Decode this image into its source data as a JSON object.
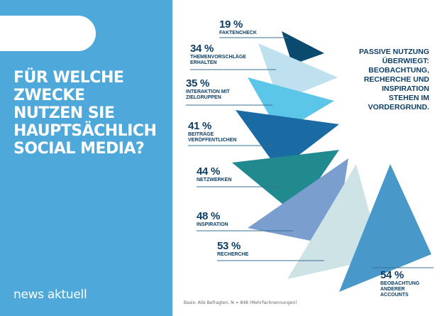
{
  "title_lines": [
    "FÜR WELCHE",
    "ZWECKE",
    "NUTZEN SIE",
    "HAUPTSÄCHLICH",
    "SOCIAL MEDIA?"
  ],
  "logo": "news aktuell",
  "note": "PASSIVE NUTZUNG\nÜBERWIEGT:\nBEOBACHTUNG,\nRECHERCHE UND\nINSPIRATION\nSTEHEN IM\nVORDERGRUND.",
  "basis": "Basis: Alle Befragten, N = 848 (Mehrfachnennungen)",
  "colors": {
    "panel": "#4ea8da",
    "text": "#0d3e66"
  },
  "chart_data": {
    "type": "bar",
    "title": "FÜR WELCHE ZWECKE NUTZEN SIE HAUPTSÄCHLICH SOCIAL MEDIA?",
    "unit": "%",
    "categories": [
      "Faktencheck",
      "Themenvorschläge erhalten",
      "Interaktion mit Zielgruppen",
      "Beiträge veröffentlichen",
      "Netzwerken",
      "Inspiration",
      "Recherche",
      "Beobachtung anderer Accounts"
    ],
    "category_labels": [
      "FAKTENCHECK",
      "THEMENVORSCHLÄGE\nERHALTEN",
      "INTERAKTION MIT\nZIELGRUPPEN",
      "BEITRÄGE\nVERÖFFENTLICHEN",
      "NETZWERKEN",
      "INSPIRATION",
      "RECHERCHE",
      "BEOBACHTUNG\nANDERER\nACCOUNTS"
    ],
    "values": [
      19,
      34,
      35,
      41,
      44,
      48,
      53,
      54
    ],
    "value_labels": [
      "19 %",
      "34 %",
      "35 %",
      "41 %",
      "44 %",
      "48 %",
      "53 %",
      "54 %"
    ],
    "colors": [
      "#0a4a6e",
      "#bfe0ee",
      "#5bc6e8",
      "#1a6aa3",
      "#218a8f",
      "#7a9fcf",
      "#cde3e6",
      "#4899c9"
    ]
  }
}
